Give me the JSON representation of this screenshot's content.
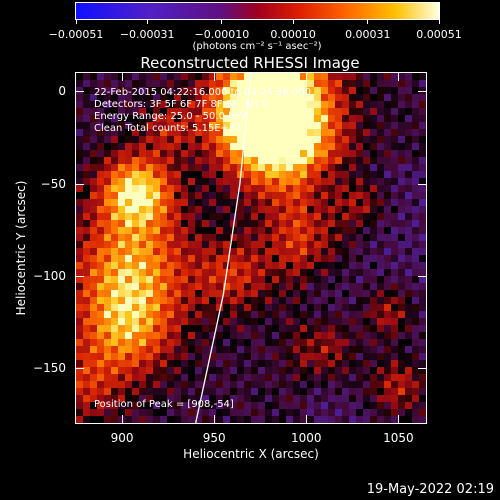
{
  "chart_data": {
    "type": "heatmap",
    "title": "Reconstructed RHESSI Image",
    "xlabel": "Heliocentric X (arcsec)",
    "ylabel": "Heliocentric Y (arcsec)",
    "xlim": [
      875,
      1065
    ],
    "ylim": [
      -180,
      10
    ],
    "x_ticks": [
      900,
      950,
      1000,
      1050
    ],
    "y_ticks": [
      0,
      -50,
      -100,
      -150
    ],
    "x_tick_labels": [
      "900",
      "950",
      "1000",
      "1050"
    ],
    "y_tick_labels": [
      "0",
      "−50",
      "−100",
      "−150"
    ],
    "colorbar": {
      "min": -0.00051,
      "max": 0.00051,
      "ticks": [
        -0.00051,
        -0.00031,
        -0.0001,
        0.0001,
        0.00031,
        0.00051
      ],
      "tick_labels": [
        "−0.00051",
        "−0.00031",
        "−0.00010",
        "0.00010",
        "0.00031",
        "0.00051"
      ],
      "unit_label": "(photons cm⁻² s⁻¹ asec⁻²)"
    },
    "annotations": [
      "22-Feb-2015 04:22:16.000 to 04:24:36.000",
      "Detectors: 3F 5F 6F 7F 8F 9F, Att 0",
      "Energy Range: 25.0 - 50.0 keV",
      "Clean     Total counts: 5.15E+03"
    ],
    "peak_label": "Position of Peak = [908,-54]",
    "peak": [
      908,
      -54
    ],
    "limb_curve": [
      [
        940,
        -180
      ],
      [
        955,
        -110
      ],
      [
        964,
        -50
      ],
      [
        970,
        10
      ]
    ]
  },
  "footer": {
    "date": "19-May-2022 02:19"
  },
  "colors": {
    "background": "#000000",
    "foreground": "#ffffff"
  }
}
